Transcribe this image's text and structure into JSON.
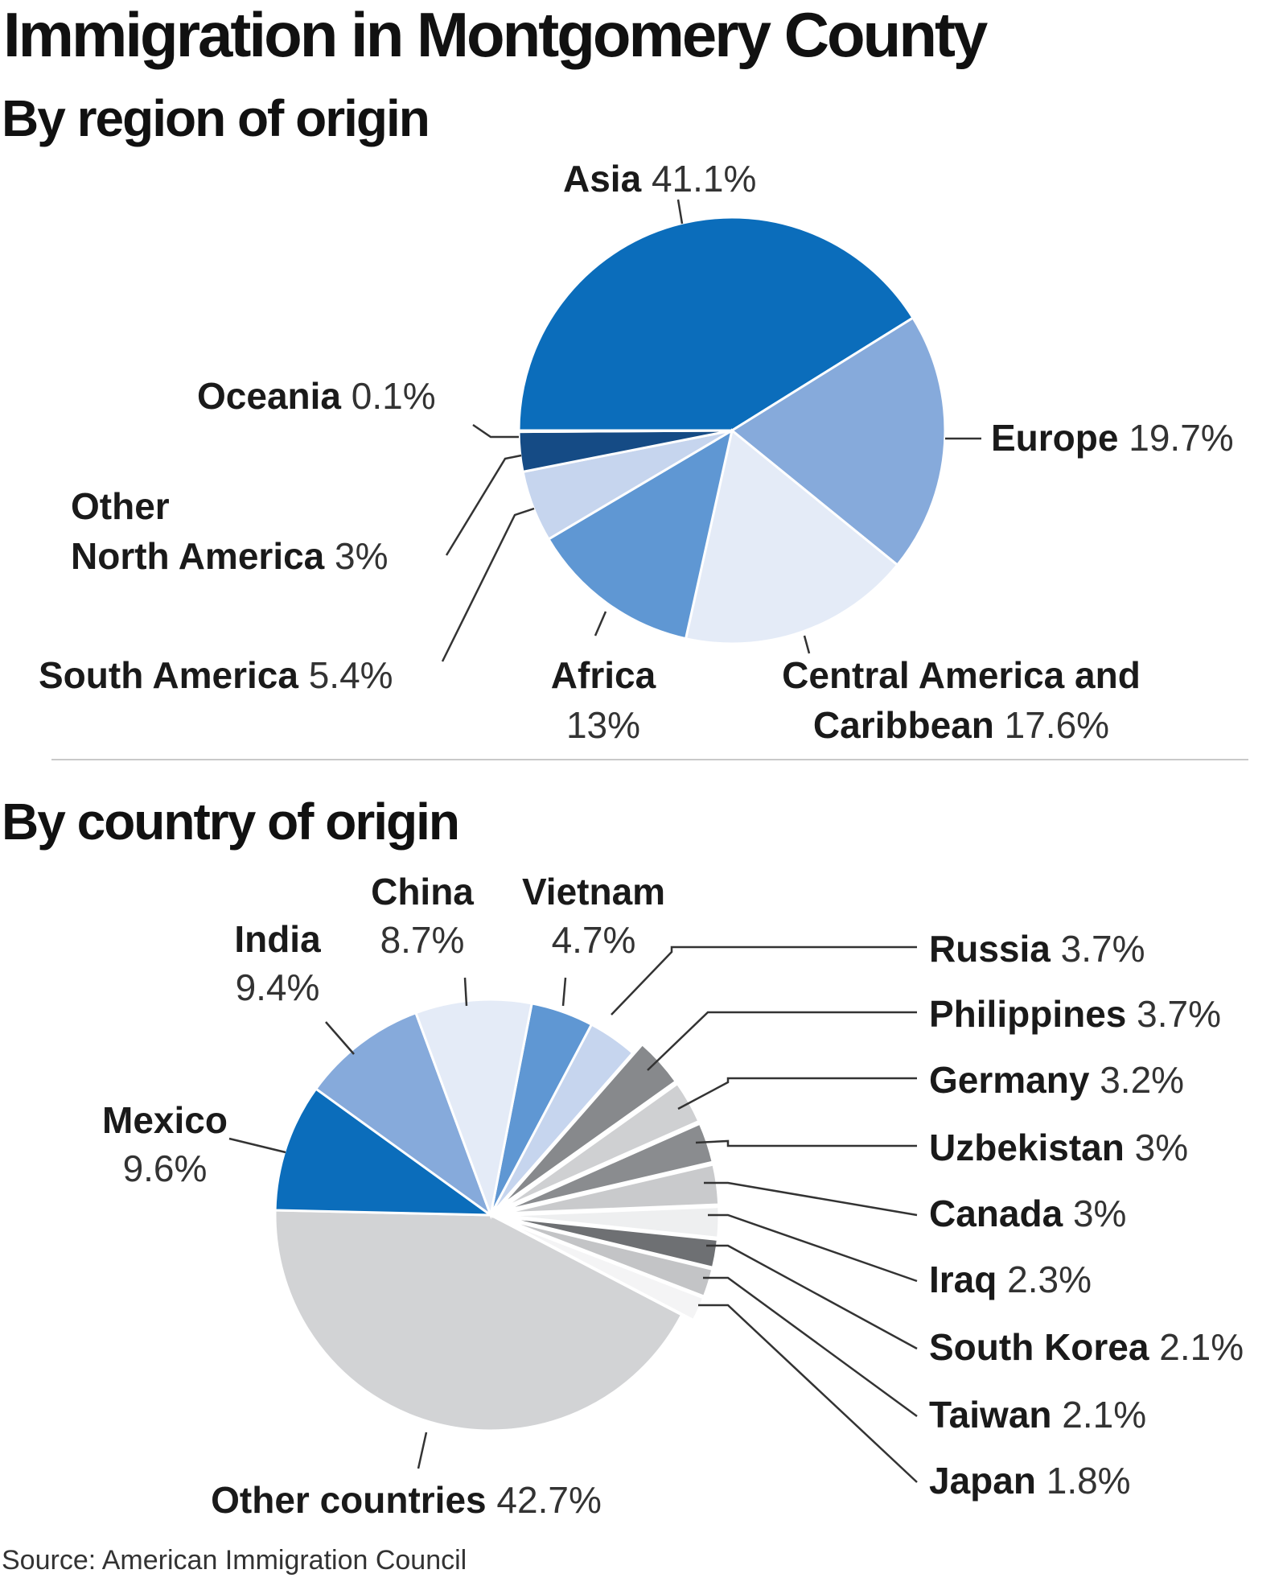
{
  "title": "Immigration in Montgomery County",
  "source": "Source: American Immigration Council",
  "chart_data": [
    {
      "type": "pie",
      "title": "By region of origin",
      "slices": [
        {
          "label": "Asia",
          "value": 41.1,
          "value_label": "41.1%",
          "color": "#0b6dbb"
        },
        {
          "label": "Europe",
          "value": 19.7,
          "value_label": "19.7%",
          "color": "#86aadb"
        },
        {
          "label": "Central America and Caribbean",
          "value": 17.6,
          "value_label": "17.6%",
          "color": "#e4ebf7"
        },
        {
          "label": "Africa",
          "value": 13,
          "value_label": "13%",
          "color": "#5f97d3"
        },
        {
          "label": "South America",
          "value": 5.4,
          "value_label": "5.4%",
          "color": "#c6d5ee"
        },
        {
          "label": "Other North America",
          "value": 3,
          "value_label": "3%",
          "color": "#154b85"
        },
        {
          "label": "Oceania",
          "value": 0.1,
          "value_label": "0.1%",
          "color": "#7e8fa6"
        }
      ]
    },
    {
      "type": "pie",
      "title": "By country of origin",
      "slices": [
        {
          "label": "Vietnam",
          "value": 4.7,
          "value_label": "4.7%",
          "color": "#5f97d3"
        },
        {
          "label": "Russia",
          "value": 3.7,
          "value_label": "3.7%",
          "color": "#c6d5ee"
        },
        {
          "label": "Philippines",
          "value": 3.7,
          "value_label": "3.7%",
          "color": "#87898c"
        },
        {
          "label": "Germany",
          "value": 3.2,
          "value_label": "3.2%",
          "color": "#cfd0d2"
        },
        {
          "label": "Uzbekistan",
          "value": 3,
          "value_label": "3%",
          "color": "#8a8c8f"
        },
        {
          "label": "Canada",
          "value": 3,
          "value_label": "3%",
          "color": "#c9cacc"
        },
        {
          "label": "Iraq",
          "value": 2.3,
          "value_label": "2.3%",
          "color": "#eeeff0"
        },
        {
          "label": "South Korea",
          "value": 2.1,
          "value_label": "2.1%",
          "color": "#6e7073"
        },
        {
          "label": "Taiwan",
          "value": 2.1,
          "value_label": "2.1%",
          "color": "#c3c4c6"
        },
        {
          "label": "Japan",
          "value": 1.8,
          "value_label": "1.8%",
          "color": "#f4f4f5"
        },
        {
          "label": "Other countries",
          "value": 42.7,
          "value_label": "42.7%",
          "color": "#d2d3d5"
        },
        {
          "label": "Mexico",
          "value": 9.6,
          "value_label": "9.6%",
          "color": "#0b6dbb"
        },
        {
          "label": "India",
          "value": 9.4,
          "value_label": "9.4%",
          "color": "#86aadb"
        },
        {
          "label": "China",
          "value": 8.7,
          "value_label": "8.7%",
          "color": "#e4ebf7"
        }
      ]
    }
  ]
}
